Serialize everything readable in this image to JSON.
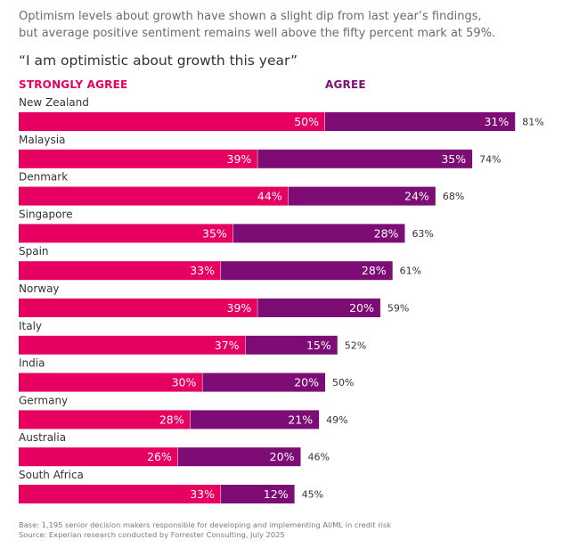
{
  "intro": {
    "line1": "Optimism levels about growth have shown a slight dip from last year’s findings,",
    "line2": "but average positive sentiment remains well above the fifty percent mark at 59%."
  },
  "chart_data": {
    "type": "bar",
    "orientation": "horizontal",
    "stacked": true,
    "title": "“I am optimistic about growth this year”",
    "unit": "%",
    "xlim": [
      0,
      100
    ],
    "categories": [
      "New Zealand",
      "Malaysia",
      "Denmark",
      "Singapore",
      "Spain",
      "Norway",
      "Italy",
      "India",
      "Germany",
      "Australia",
      "South Africa"
    ],
    "series": [
      {
        "name": "STRONGLY AGREE",
        "color": "#e6005f",
        "values": [
          50,
          39,
          44,
          35,
          33,
          39,
          37,
          30,
          28,
          26,
          33
        ],
        "labels": [
          "50%",
          "39%",
          "44%",
          "35%",
          "33%",
          "39%",
          "37%",
          "30%",
          "28%",
          "26%",
          "33%"
        ]
      },
      {
        "name": "AGREE",
        "color": "#7d0d75",
        "values": [
          31,
          35,
          24,
          28,
          28,
          20,
          15,
          20,
          21,
          20,
          12
        ],
        "labels": [
          "31%",
          "35%",
          "24%",
          "28%",
          "28%",
          "20%",
          "15%",
          "20%",
          "21%",
          "20%",
          "12%"
        ]
      }
    ],
    "totals": [
      81,
      74,
      68,
      63,
      61,
      59,
      52,
      50,
      49,
      46,
      45
    ],
    "total_labels": [
      "81%",
      "74%",
      "68%",
      "63%",
      "61%",
      "59%",
      "52%",
      "50%",
      "49%",
      "46%",
      "45%"
    ],
    "legend_position": "top-left"
  },
  "footer": {
    "base": "Base: 1,195 senior decision makers responsible for developing and implementing AI/ML in credit risk",
    "source": "Source: Experian research conducted by Forrester Consulting, July 2025"
  }
}
